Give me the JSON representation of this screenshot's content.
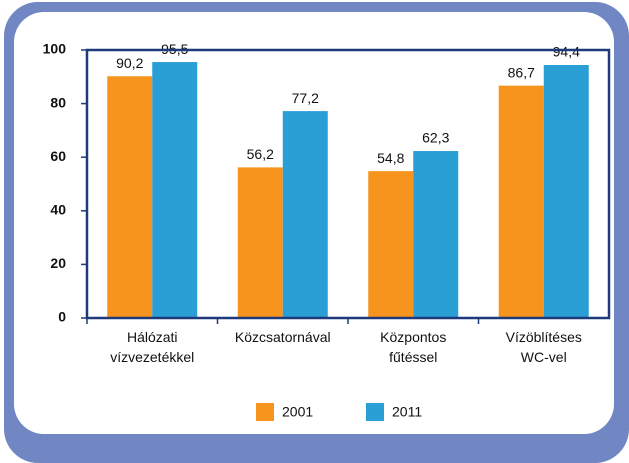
{
  "chart_data": {
    "type": "bar",
    "categories": [
      "Hálózati\nvízvezetékkel",
      "Közcsatornával",
      "Központos\nfűtéssel",
      "Vízöblítéses\nWC-vel"
    ],
    "series": [
      {
        "name": "2001",
        "color": "#f7941d",
        "values": [
          90.2,
          56.2,
          54.8,
          86.7
        ],
        "value_labels": [
          "90,2",
          "56,2",
          "54,8",
          "86,7"
        ]
      },
      {
        "name": "2011",
        "color": "#2a9fd6",
        "values": [
          95.5,
          77.2,
          62.3,
          94.4
        ],
        "value_labels": [
          "95,5",
          "77,2",
          "62,3",
          "94,4"
        ]
      }
    ],
    "ylim": [
      0,
      100
    ],
    "yticks": [
      0,
      20,
      40,
      60,
      80,
      100
    ],
    "grid": false,
    "legend": "bottom"
  }
}
